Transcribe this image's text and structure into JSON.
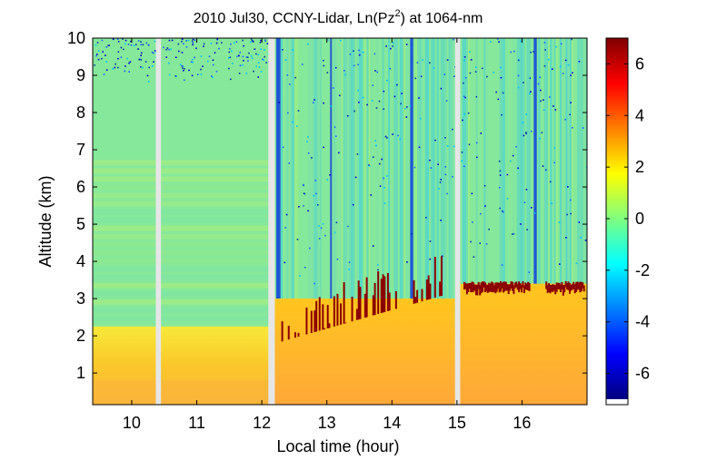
{
  "chart_data": {
    "type": "heatmap",
    "title_parts": [
      "2010 Jul30, CCNY-Lidar, Ln(Pz",
      "2",
      ") at 1064-nm"
    ],
    "xlabel": "Local time (hour)",
    "ylabel": "Altitude (km)",
    "xlim": [
      9.4,
      17.0
    ],
    "ylim": [
      0.15,
      10.0
    ],
    "x_ticks": [
      "10",
      "11",
      "12",
      "13",
      "14",
      "15",
      "16"
    ],
    "x_tick_values": [
      10,
      11,
      12,
      13,
      14,
      15,
      16
    ],
    "y_ticks": [
      "1",
      "2",
      "3",
      "4",
      "5",
      "6",
      "7",
      "8",
      "9",
      "10"
    ],
    "y_tick_values": [
      1,
      2,
      3,
      4,
      5,
      6,
      7,
      8,
      9,
      10
    ],
    "colorbar": {
      "range": [
        -7,
        7
      ],
      "ticks": [
        "6",
        "4",
        "2",
        "0",
        "-2",
        "-4",
        "-6"
      ],
      "tick_values": [
        6,
        4,
        2,
        0,
        -2,
        -4,
        -6
      ],
      "colormap": "jet"
    },
    "data_gaps_hours": [
      [
        10.37,
        10.45
      ],
      [
        12.1,
        12.2
      ],
      [
        14.97,
        15.05
      ]
    ],
    "layers": [
      {
        "description": "near-surface boundary layer",
        "x_range": [
          9.4,
          17.0
        ],
        "top_km": 2.2,
        "value": 3.0
      },
      {
        "description": "mixed layer with aerosol top",
        "x_range": [
          12.2,
          14.97
        ],
        "top_km": 3.0,
        "value": 3.2
      },
      {
        "description": "elevated aerosol layer",
        "x_range": [
          15.05,
          17.0
        ],
        "top_km": 3.4,
        "value": 3.0
      }
    ]
  }
}
